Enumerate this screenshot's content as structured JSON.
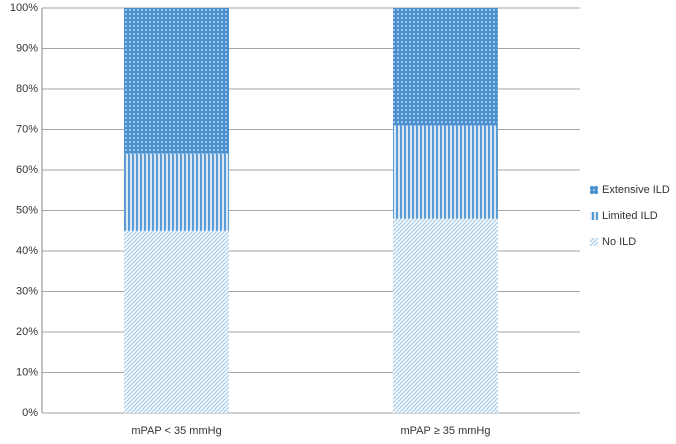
{
  "chart_data": {
    "type": "stacked_bar",
    "categories": [
      "mPAP < 35 mmHg",
      "mPAP ≥ 35 mmHg"
    ],
    "series": [
      {
        "name": "No ILD",
        "color": "#a8cde8",
        "values": [
          45,
          48
        ]
      },
      {
        "name": "Limited ILD",
        "color": "#5b9bd5",
        "values": [
          19,
          23
        ]
      },
      {
        "name": "Extensive ILD",
        "color": "#4a8fd0",
        "values": [
          36,
          29
        ]
      }
    ],
    "ylim": [
      0,
      100
    ],
    "yticks": [
      {
        "value": 0,
        "label": "0%"
      },
      {
        "value": 10,
        "label": "10%"
      },
      {
        "value": 20,
        "label": "20%"
      },
      {
        "value": 30,
        "label": "30%"
      },
      {
        "value": 40,
        "label": "40%"
      },
      {
        "value": 50,
        "label": "50%"
      },
      {
        "value": 60,
        "label": "60%"
      },
      {
        "value": 70,
        "label": "70%"
      },
      {
        "value": 80,
        "label": "80%"
      },
      {
        "value": 90,
        "label": "90%"
      },
      {
        "value": 100,
        "label": "100%"
      }
    ],
    "grid": true,
    "legend": "right"
  }
}
